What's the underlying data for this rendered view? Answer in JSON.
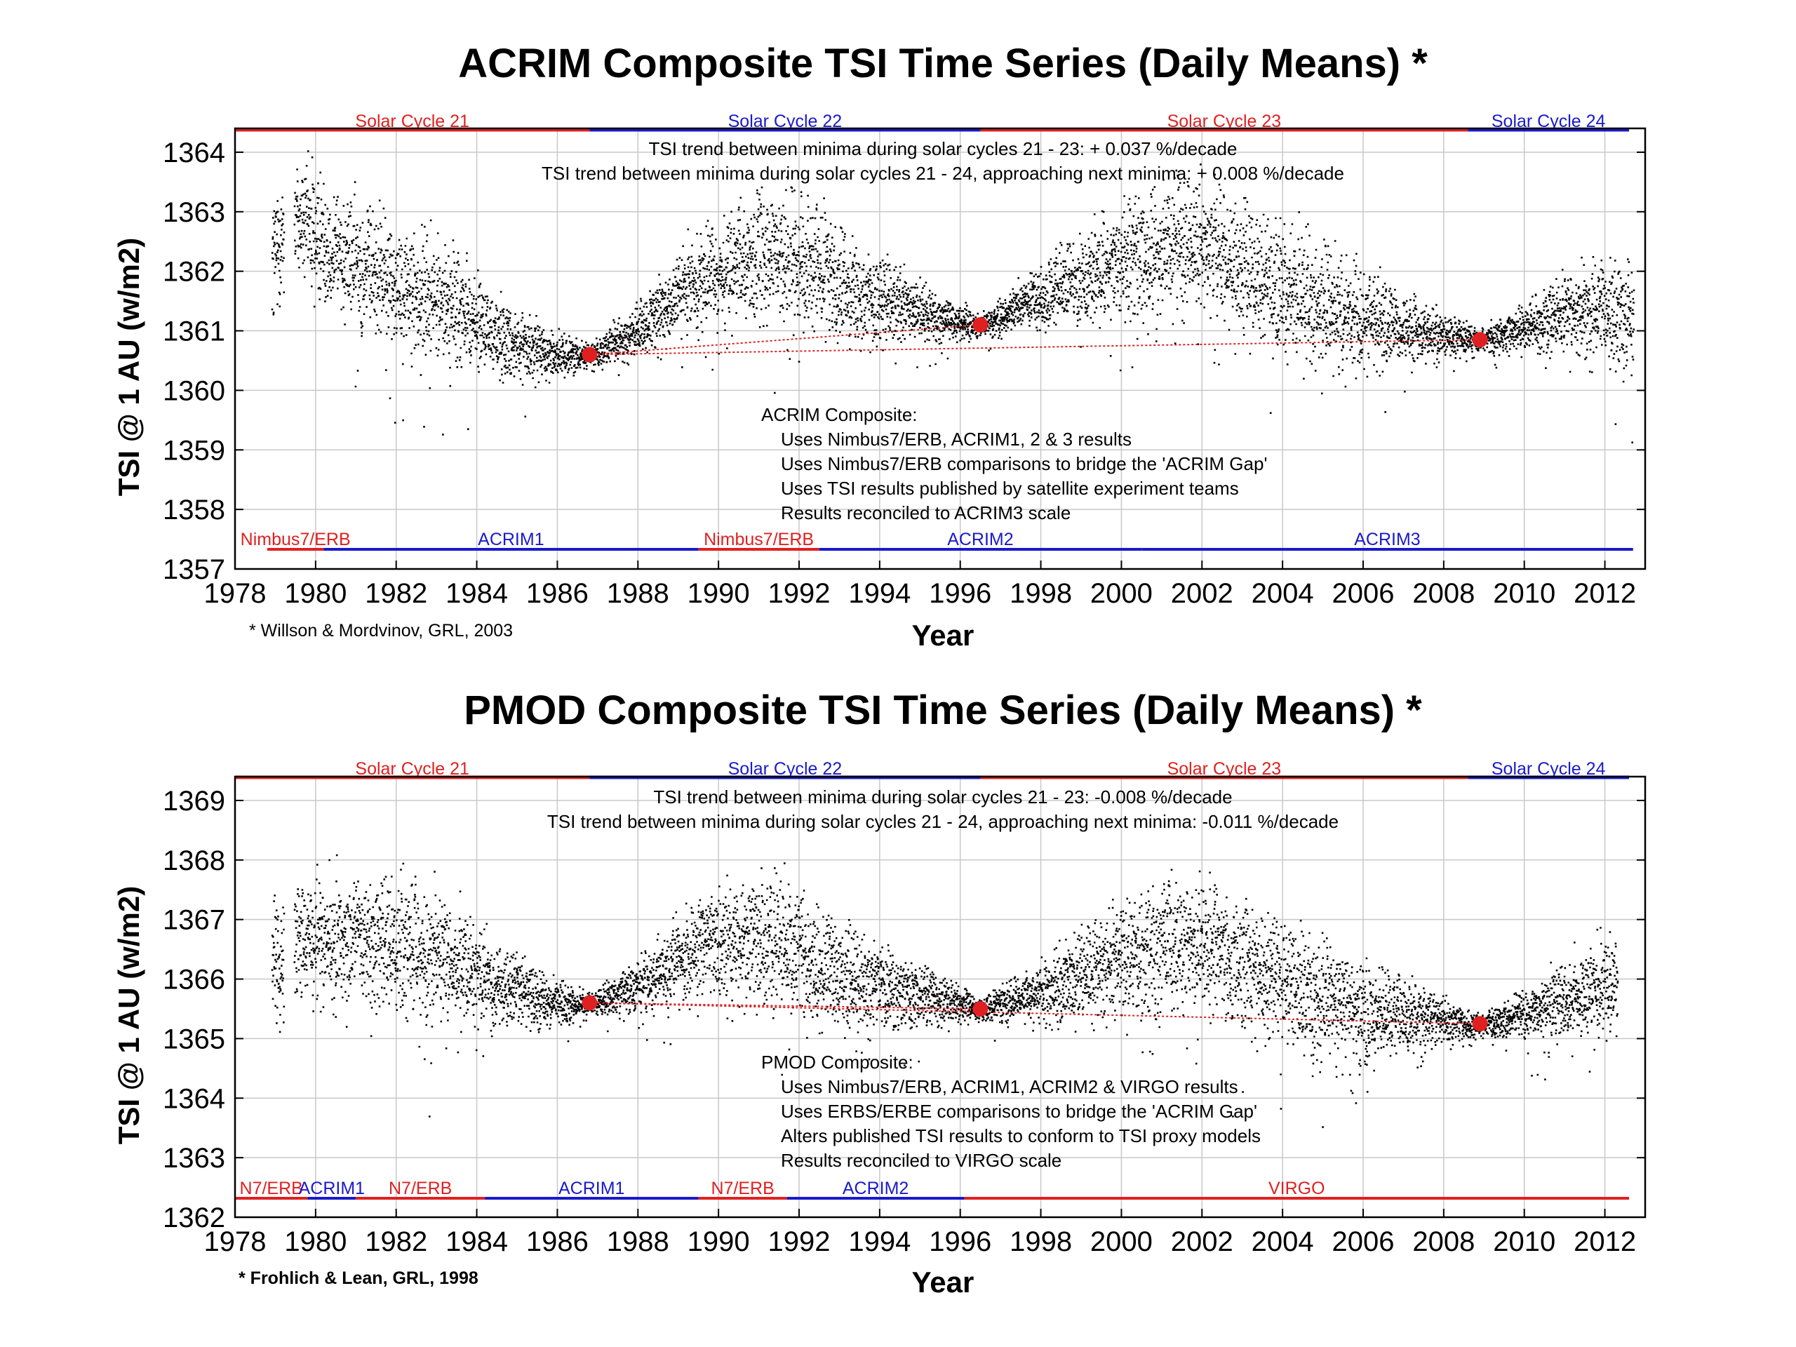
{
  "colors": {
    "red": "#e02020",
    "blue": "#1a1acc",
    "data": "#000000",
    "trend": "#e02020",
    "grid": "#c8c8c8"
  },
  "chart_data": [
    {
      "id": "acrim",
      "type": "scatter",
      "title": "ACRIM Composite TSI Time Series (Daily Means) *",
      "xlabel": "Year",
      "ylabel": "TSI @ 1 AU (w/m2)",
      "xlim": [
        1978,
        2013
      ],
      "ylim": [
        1357,
        1364.4
      ],
      "x_ticks": [
        1978,
        1980,
        1982,
        1984,
        1986,
        1988,
        1990,
        1992,
        1994,
        1996,
        1998,
        2000,
        2002,
        2004,
        2006,
        2008,
        2010,
        2012
      ],
      "y_ticks": [
        1357,
        1358,
        1359,
        1360,
        1361,
        1362,
        1363,
        1364
      ],
      "cycles": [
        {
          "label": "Solar Cycle 21",
          "start": 1978,
          "end": 1986.8,
          "color": "red"
        },
        {
          "label": "Solar Cycle 22",
          "start": 1986.8,
          "end": 1996.5,
          "color": "blue"
        },
        {
          "label": "Solar Cycle 23",
          "start": 1996.5,
          "end": 2008.6,
          "color": "red"
        },
        {
          "label": "Solar Cycle 24",
          "start": 2008.6,
          "end": 2012.6,
          "color": "blue"
        }
      ],
      "instruments": [
        {
          "label": "Nimbus7/ERB",
          "start": 1978.8,
          "end": 1980.2,
          "color": "red"
        },
        {
          "label": "ACRIM1",
          "start": 1980.2,
          "end": 1989.5,
          "color": "blue"
        },
        {
          "label": "Nimbus7/ERB",
          "start": 1989.5,
          "end": 1992.5,
          "color": "red"
        },
        {
          "label": "ACRIM2",
          "start": 1992.5,
          "end": 2000.5,
          "color": "blue"
        },
        {
          "label": "ACRIM3",
          "start": 2000.5,
          "end": 2012.7,
          "color": "blue"
        }
      ],
      "trend_text": [
        "TSI trend between minima during solar cycles 21 - 23: + 0.037 %/decade",
        "TSI trend between minima during solar cycles 21 - 24, approaching next minima: + 0.008 %/decade"
      ],
      "composite_notes": [
        "ACRIM Composite:",
        "Uses Nimbus7/ERB, ACRIM1, 2 & 3  results",
        "Uses Nimbus7/ERB comparisons to bridge the 'ACRIM Gap'",
        "Uses TSI results published by satellite experiment teams",
        "Results reconciled to ACRIM3 scale"
      ],
      "minima": [
        {
          "x": 1986.8,
          "y": 1360.6
        },
        {
          "x": 1996.5,
          "y": 1361.1
        },
        {
          "x": 2008.9,
          "y": 1360.85
        }
      ],
      "trend_lines": [
        [
          [
            1986.8,
            1360.6
          ],
          [
            1996.5,
            1361.1
          ]
        ],
        [
          [
            1986.8,
            1360.6
          ],
          [
            2008.9,
            1360.85
          ]
        ]
      ],
      "baseline_knots": [
        [
          1978.9,
          1362.3
        ],
        [
          1979.4,
          1363.0
        ],
        [
          1980.5,
          1362.4
        ],
        [
          1982.0,
          1361.8
        ],
        [
          1983.5,
          1361.4
        ],
        [
          1984.5,
          1360.9
        ],
        [
          1986.0,
          1360.6
        ],
        [
          1986.8,
          1360.6
        ],
        [
          1988.0,
          1361.0
        ],
        [
          1989.5,
          1361.9
        ],
        [
          1991.0,
          1362.2
        ],
        [
          1992.0,
          1362.3
        ],
        [
          1993.0,
          1361.8
        ],
        [
          1994.5,
          1361.4
        ],
        [
          1996.5,
          1361.1
        ],
        [
          1998.0,
          1361.6
        ],
        [
          2000.0,
          1362.2
        ],
        [
          2002.0,
          1362.5
        ],
        [
          2003.5,
          1361.9
        ],
        [
          2005.0,
          1361.4
        ],
        [
          2007.0,
          1361.05
        ],
        [
          2008.9,
          1360.85
        ],
        [
          2010.0,
          1361.1
        ],
        [
          2011.5,
          1361.4
        ],
        [
          2012.7,
          1361.2
        ]
      ],
      "citation": "* Willson & Mordvinov, GRL, 2003"
    },
    {
      "id": "pmod",
      "type": "scatter",
      "title": "PMOD Composite TSI Time Series (Daily Means) *",
      "xlabel": "Year",
      "ylabel": "TSI @ 1 AU (w/m2)",
      "xlim": [
        1978,
        2013
      ],
      "ylim": [
        1362,
        1369.4
      ],
      "x_ticks": [
        1978,
        1980,
        1982,
        1984,
        1986,
        1988,
        1990,
        1992,
        1994,
        1996,
        1998,
        2000,
        2002,
        2004,
        2006,
        2008,
        2010,
        2012
      ],
      "y_ticks": [
        1362,
        1363,
        1364,
        1365,
        1366,
        1367,
        1368,
        1369
      ],
      "cycles": [
        {
          "label": "Solar Cycle 21",
          "start": 1978,
          "end": 1986.8,
          "color": "red"
        },
        {
          "label": "Solar Cycle 22",
          "start": 1986.8,
          "end": 1996.5,
          "color": "blue"
        },
        {
          "label": "Solar Cycle 23",
          "start": 1996.5,
          "end": 2008.6,
          "color": "red"
        },
        {
          "label": "Solar Cycle 24",
          "start": 2008.6,
          "end": 2012.6,
          "color": "blue"
        }
      ],
      "instruments": [
        {
          "label": "N7/ERB",
          "start": 1978.0,
          "end": 1979.8,
          "color": "red"
        },
        {
          "label": "ACRIM1",
          "start": 1979.8,
          "end": 1981.0,
          "color": "blue"
        },
        {
          "label": "N7/ERB",
          "start": 1981.0,
          "end": 1984.2,
          "color": "red"
        },
        {
          "label": "ACRIM1",
          "start": 1984.2,
          "end": 1989.5,
          "color": "blue"
        },
        {
          "label": "N7/ERB",
          "start": 1989.5,
          "end": 1991.7,
          "color": "red"
        },
        {
          "label": "ACRIM2",
          "start": 1991.7,
          "end": 1996.1,
          "color": "blue"
        },
        {
          "label": "VIRGO",
          "start": 1996.1,
          "end": 2012.6,
          "color": "red"
        }
      ],
      "trend_text": [
        "TSI trend between minima during solar cycles 21 - 23: -0.008 %/decade",
        "TSI trend between minima during solar cycles 21 - 24, approaching next minima: -0.011 %/decade"
      ],
      "composite_notes": [
        "PMOD Composite:",
        "Uses Nimbus7/ERB, ACRIM1, ACRIM2 & VIRGO results",
        "Uses ERBS/ERBE comparisons to bridge the 'ACRIM Gap'",
        "Alters published TSI results to conform to TSI proxy models",
        "Results reconciled to VIRGO scale"
      ],
      "minima": [
        {
          "x": 1986.8,
          "y": 1365.6
        },
        {
          "x": 1996.5,
          "y": 1365.5
        },
        {
          "x": 2008.9,
          "y": 1365.25
        }
      ],
      "trend_lines": [
        [
          [
            1986.8,
            1365.6
          ],
          [
            1996.5,
            1365.5
          ]
        ],
        [
          [
            1986.8,
            1365.6
          ],
          [
            2008.9,
            1365.25
          ]
        ]
      ],
      "baseline_knots": [
        [
          1978.9,
          1366.3
        ],
        [
          1979.4,
          1366.6
        ],
        [
          1980.5,
          1366.7
        ],
        [
          1982.0,
          1366.6
        ],
        [
          1983.5,
          1366.3
        ],
        [
          1984.5,
          1365.9
        ],
        [
          1986.0,
          1365.6
        ],
        [
          1986.8,
          1365.6
        ],
        [
          1988.0,
          1365.9
        ],
        [
          1989.5,
          1366.6
        ],
        [
          1991.0,
          1366.7
        ],
        [
          1992.0,
          1366.5
        ],
        [
          1993.0,
          1366.0
        ],
        [
          1994.5,
          1365.8
        ],
        [
          1996.5,
          1365.5
        ],
        [
          1998.0,
          1365.8
        ],
        [
          2000.0,
          1366.4
        ],
        [
          2002.0,
          1366.7
        ],
        [
          2003.5,
          1366.1
        ],
        [
          2005.0,
          1365.6
        ],
        [
          2007.0,
          1365.4
        ],
        [
          2008.9,
          1365.25
        ],
        [
          2010.0,
          1365.4
        ],
        [
          2011.5,
          1365.8
        ],
        [
          2012.3,
          1366.0
        ]
      ],
      "citation": "* Frohlich & Lean, GRL, 1998"
    }
  ]
}
